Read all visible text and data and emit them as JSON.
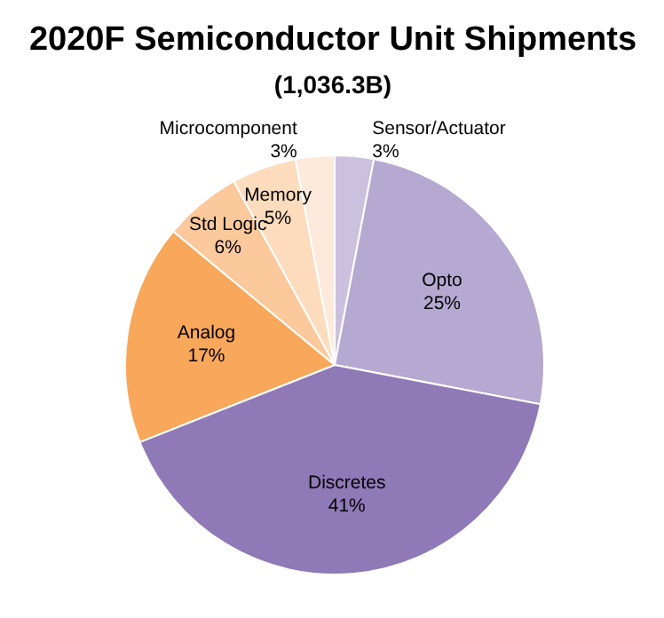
{
  "chart_data": {
    "type": "pie",
    "title": "2020F Semiconductor Unit Shipments",
    "subtitle": "(1,036.3B)",
    "categories": [
      "Sensor/Actuator",
      "Opto",
      "Discretes",
      "Analog",
      "Std Logic",
      "Memory",
      "Microcomponent"
    ],
    "values": [
      3,
      25,
      41,
      17,
      6,
      5,
      3
    ],
    "value_labels": [
      "3%",
      "25%",
      "41%",
      "17%",
      "6%",
      "5%",
      "3%"
    ],
    "colors": [
      "#cbc1de",
      "#b5a8d1",
      "#8f79b7",
      "#f8a75b",
      "#fbc99c",
      "#fcdcbd",
      "#fdeadb"
    ]
  }
}
